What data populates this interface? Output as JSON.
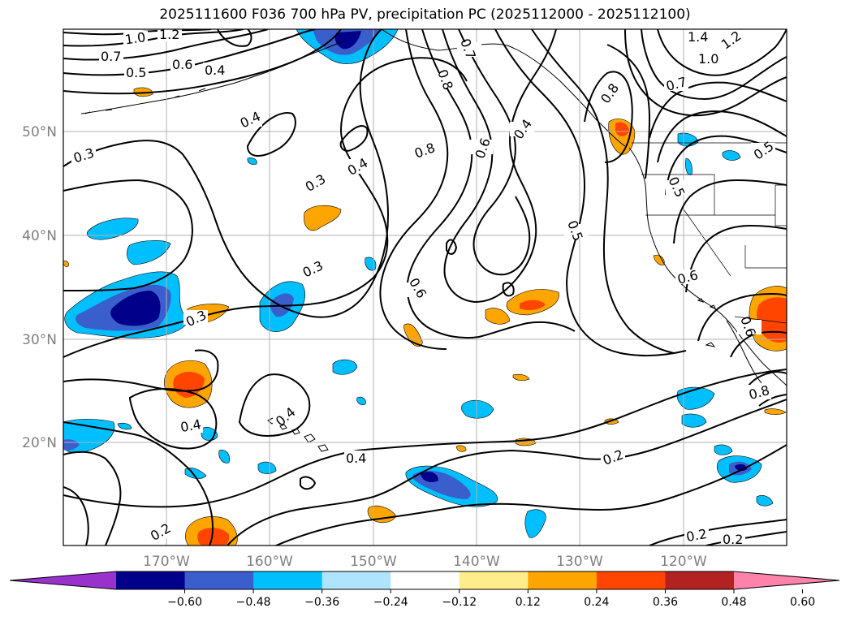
{
  "title": "2025111600 F036 700 hPa PV, precipitation PC (2025112000 - 2025112100)",
  "map": {
    "lat_labels": [
      "50°N",
      "40°N",
      "30°N",
      "20°N"
    ],
    "lon_labels": [
      "170°W",
      "160°W",
      "150°W",
      "140°W",
      "130°W",
      "120°W"
    ],
    "grid": true,
    "contour_labels": [
      "1.0",
      "1.2",
      "0.7",
      "0.6",
      "0.5",
      "0.4",
      "0.3",
      "0.8",
      "1.4",
      "0.2"
    ],
    "pv_contour_color": "#000000",
    "coastline_color": "#000000"
  },
  "colorbar": {
    "orientation": "horizontal",
    "placement": "bottom",
    "extend": "both",
    "tick_labels": [
      "−0.60",
      "−0.48",
      "−0.36",
      "−0.24",
      "−0.12",
      "0.12",
      "0.24",
      "0.36",
      "0.48",
      "0.60"
    ],
    "colors": [
      "#9932cc",
      "#00008b",
      "#3a5fcd",
      "#00bfff",
      "#afe4ff",
      "#ffffff",
      "#ffec8b",
      "#ffa500",
      "#ff4500",
      "#b22222",
      "#ff82ab"
    ]
  }
}
